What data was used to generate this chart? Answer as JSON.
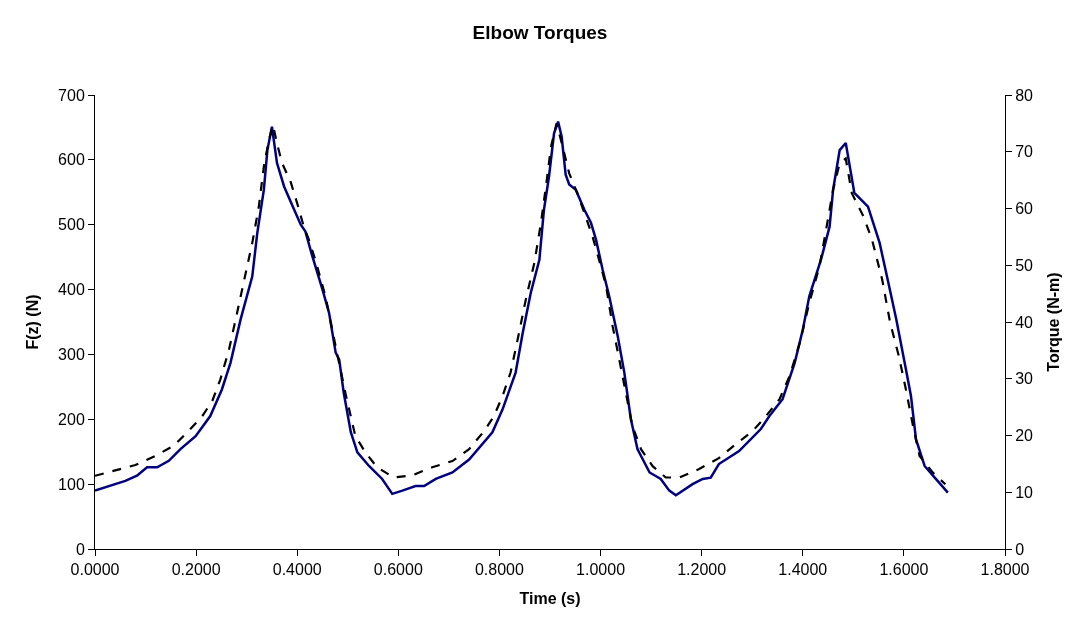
{
  "chart_data": {
    "type": "line",
    "title": "Elbow Torques",
    "xlabel": "Time (s)",
    "ylabel": "F(z) (N)",
    "y2label": "Torque (N-m)",
    "xlim": [
      0,
      1.8
    ],
    "xticks": [
      {
        "value": 0,
        "label": "0.0000"
      },
      {
        "value": 0.2,
        "label": "0.2000"
      },
      {
        "value": 0.4,
        "label": "0.4000"
      },
      {
        "value": 0.6,
        "label": "0.6000"
      },
      {
        "value": 0.8,
        "label": "0.8000"
      },
      {
        "value": 1.0,
        "label": "1.0000"
      },
      {
        "value": 1.2,
        "label": "1.2000"
      },
      {
        "value": 1.4,
        "label": "1.4000"
      },
      {
        "value": 1.6,
        "label": "1.6000"
      },
      {
        "value": 1.8,
        "label": "1.8000"
      }
    ],
    "ylim": [
      0,
      700
    ],
    "yticks": [
      0,
      100,
      200,
      300,
      400,
      500,
      600,
      700
    ],
    "y2lim": [
      0,
      80
    ],
    "y2ticks": [
      0,
      10,
      20,
      30,
      40,
      50,
      60,
      70,
      80
    ],
    "marker": "none",
    "series": [
      {
        "color": "#000080",
        "line_style": "solid",
        "x": [
          0.0,
          0.06,
          0.083,
          0.103,
          0.123,
          0.146,
          0.169,
          0.199,
          0.228,
          0.251,
          0.268,
          0.288,
          0.311,
          0.321,
          0.334,
          0.341,
          0.35,
          0.36,
          0.374,
          0.394,
          0.407,
          0.416,
          0.43,
          0.45,
          0.463,
          0.476,
          0.483,
          0.492,
          0.506,
          0.519,
          0.542,
          0.568,
          0.588,
          0.608,
          0.634,
          0.651,
          0.674,
          0.707,
          0.74,
          0.786,
          0.806,
          0.832,
          0.846,
          0.862,
          0.879,
          0.888,
          0.898,
          0.908,
          0.916,
          0.923,
          0.931,
          0.938,
          0.951,
          0.968,
          0.981,
          0.991,
          1.004,
          1.017,
          1.034,
          1.047,
          1.06,
          1.073,
          1.097,
          1.119,
          1.136,
          1.149,
          1.182,
          1.202,
          1.218,
          1.234,
          1.274,
          1.317,
          1.334,
          1.36,
          1.384,
          1.4,
          1.413,
          1.436,
          1.453,
          1.46,
          1.473,
          1.485,
          1.493,
          1.502,
          1.529,
          1.552,
          1.568,
          1.585,
          1.604,
          1.614,
          1.624,
          1.641,
          1.661,
          1.687
        ],
        "values": [
          90,
          105,
          113,
          126,
          126,
          136,
          154,
          174,
          205,
          246,
          287,
          354,
          420,
          487,
          554,
          615,
          651,
          595,
          559,
          523,
          500,
          490,
          451,
          400,
          364,
          303,
          292,
          241,
          180,
          149,
          128,
          108,
          85,
          90,
          97,
          97,
          108,
          118,
          138,
          180,
          215,
          272,
          333,
          395,
          446,
          523,
          574,
          641,
          659,
          636,
          577,
          562,
          554,
          523,
          503,
          477,
          431,
          390,
          328,
          272,
          200,
          154,
          118,
          108,
          90,
          83,
          100,
          108,
          110,
          131,
          151,
          185,
          205,
          231,
          287,
          338,
          390,
          446,
          497,
          554,
          615,
          626,
          590,
          549,
          528,
          472,
          415,
          354,
          277,
          236,
          169,
          128,
          110,
          87
        ]
      },
      {
        "color": "#000000",
        "line_style": "dashed",
        "axis": "y2",
        "x": [
          0.0,
          0.08,
          0.119,
          0.156,
          0.185,
          0.212,
          0.232,
          0.248,
          0.265,
          0.281,
          0.298,
          0.311,
          0.324,
          0.334,
          0.344,
          0.352,
          0.36,
          0.37,
          0.387,
          0.4,
          0.413,
          0.423,
          0.436,
          0.456,
          0.476,
          0.496,
          0.515,
          0.535,
          0.558,
          0.591,
          0.628,
          0.667,
          0.707,
          0.74,
          0.77,
          0.789,
          0.806,
          0.822,
          0.836,
          0.852,
          0.869,
          0.882,
          0.892,
          0.902,
          0.913,
          0.925,
          0.938,
          0.954,
          0.968,
          0.984,
          0.997,
          1.011,
          1.024,
          1.037,
          1.05,
          1.063,
          1.08,
          1.103,
          1.129,
          1.156,
          1.195,
          1.234,
          1.268,
          1.301,
          1.327,
          1.354,
          1.374,
          1.394,
          1.413,
          1.433,
          1.446,
          1.46,
          1.473,
          1.485,
          1.497,
          1.52,
          1.537,
          1.557,
          1.573,
          1.59,
          1.604,
          1.618,
          1.631,
          1.657,
          1.682
        ],
        "values": [
          12.9,
          14.8,
          16.4,
          18.2,
          20.8,
          23.4,
          26.1,
          29.9,
          35.1,
          41.6,
          48.6,
          53.9,
          60.3,
          67.4,
          72.1,
          74.7,
          71.5,
          68.0,
          64.7,
          60.9,
          56.8,
          54.5,
          50.9,
          44.5,
          35.7,
          27.2,
          19.9,
          17.0,
          14.4,
          12.6,
          13.0,
          14.4,
          15.5,
          17.6,
          20.8,
          23.4,
          26.9,
          31.1,
          36.9,
          43.9,
          50.4,
          57.4,
          63.9,
          70.9,
          75.0,
          70.9,
          66.2,
          62.7,
          59.2,
          55.1,
          51.0,
          46.3,
          39.2,
          33.4,
          27.5,
          21.7,
          17.6,
          14.6,
          12.6,
          12.6,
          14.1,
          16.0,
          18.5,
          20.8,
          23.4,
          26.4,
          30.5,
          36.3,
          43.4,
          49.8,
          56.2,
          63.3,
          68.0,
          68.8,
          62.7,
          58.6,
          54.5,
          47.5,
          39.8,
          34.0,
          28.1,
          21.7,
          16.4,
          13.5,
          11.4
        ]
      }
    ]
  }
}
